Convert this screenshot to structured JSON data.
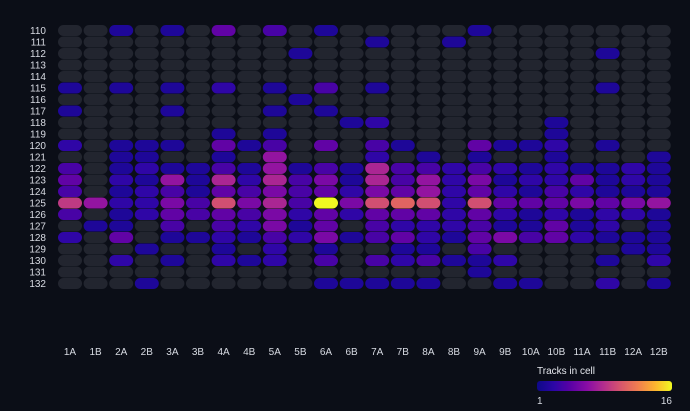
{
  "chart_data": {
    "type": "heatmap",
    "title": "",
    "xlabel": "",
    "ylabel": "",
    "columns": [
      "1A",
      "1B",
      "2A",
      "2B",
      "3A",
      "3B",
      "4A",
      "4B",
      "5A",
      "5B",
      "6A",
      "6B",
      "7A",
      "7B",
      "8A",
      "8B",
      "9A",
      "9B",
      "10A",
      "10B",
      "11A",
      "11B",
      "12A",
      "12B"
    ],
    "rows": [
      "110",
      "111",
      "112",
      "113",
      "114",
      "115",
      "116",
      "117",
      "118",
      "119",
      "120",
      "121",
      "122",
      "123",
      "124",
      "125",
      "126",
      "127",
      "128",
      "129",
      "130",
      "131",
      "132"
    ],
    "values": [
      [
        0,
        0,
        2,
        0,
        2,
        0,
        5,
        0,
        4,
        0,
        2,
        0,
        0,
        0,
        0,
        0,
        2,
        0,
        0,
        0,
        0,
        0,
        0,
        0
      ],
      [
        0,
        0,
        0,
        0,
        0,
        0,
        0,
        0,
        0,
        0,
        0,
        0,
        2,
        0,
        0,
        2,
        0,
        0,
        0,
        0,
        0,
        0,
        0,
        0
      ],
      [
        0,
        0,
        0,
        0,
        0,
        0,
        0,
        0,
        0,
        2,
        0,
        0,
        0,
        0,
        0,
        0,
        0,
        0,
        0,
        0,
        0,
        2,
        0,
        0
      ],
      [
        0,
        0,
        0,
        0,
        0,
        0,
        0,
        0,
        0,
        0,
        0,
        0,
        0,
        0,
        0,
        0,
        0,
        0,
        0,
        0,
        0,
        0,
        0,
        0
      ],
      [
        0,
        0,
        0,
        0,
        0,
        0,
        0,
        0,
        0,
        0,
        0,
        0,
        0,
        0,
        0,
        0,
        0,
        0,
        0,
        0,
        0,
        0,
        0,
        0
      ],
      [
        2,
        0,
        2,
        0,
        2,
        0,
        3,
        0,
        2,
        0,
        4,
        0,
        2,
        0,
        0,
        0,
        0,
        0,
        0,
        0,
        0,
        2,
        0,
        0
      ],
      [
        0,
        0,
        0,
        0,
        0,
        0,
        0,
        0,
        0,
        2,
        0,
        0,
        0,
        0,
        0,
        0,
        0,
        0,
        0,
        0,
        0,
        0,
        0,
        0
      ],
      [
        2,
        0,
        0,
        0,
        2,
        0,
        0,
        0,
        2,
        0,
        2,
        0,
        0,
        0,
        0,
        0,
        0,
        0,
        0,
        0,
        0,
        0,
        0,
        0
      ],
      [
        0,
        0,
        0,
        0,
        0,
        0,
        0,
        0,
        0,
        0,
        0,
        2,
        3,
        0,
        0,
        0,
        0,
        0,
        0,
        2,
        0,
        0,
        0,
        0
      ],
      [
        0,
        0,
        0,
        0,
        0,
        0,
        2,
        0,
        2,
        0,
        0,
        0,
        0,
        0,
        0,
        0,
        0,
        0,
        0,
        2,
        0,
        0,
        0,
        0
      ],
      [
        3,
        0,
        2,
        2,
        2,
        0,
        5,
        2,
        4,
        0,
        5,
        0,
        4,
        2,
        0,
        0,
        5,
        2,
        2,
        3,
        0,
        2,
        0,
        0
      ],
      [
        0,
        0,
        2,
        2,
        0,
        0,
        2,
        0,
        7,
        0,
        0,
        0,
        3,
        0,
        2,
        0,
        2,
        0,
        0,
        2,
        0,
        0,
        0,
        2
      ],
      [
        4,
        0,
        2,
        3,
        2,
        2,
        4,
        2,
        7,
        2,
        4,
        2,
        8,
        4,
        4,
        3,
        4,
        3,
        2,
        3,
        2,
        2,
        3,
        2
      ],
      [
        5,
        0,
        3,
        2,
        7,
        2,
        8,
        3,
        8,
        4,
        6,
        2,
        8,
        4,
        7,
        3,
        6,
        2,
        3,
        3,
        5,
        2,
        3,
        2
      ],
      [
        4,
        0,
        2,
        3,
        4,
        2,
        5,
        4,
        6,
        4,
        5,
        3,
        6,
        5,
        7,
        3,
        5,
        3,
        2,
        4,
        3,
        2,
        2,
        2
      ],
      [
        9,
        7,
        3,
        3,
        6,
        4,
        10,
        6,
        8,
        4,
        16,
        6,
        10,
        11,
        10,
        3,
        10,
        5,
        5,
        5,
        6,
        5,
        6,
        7
      ],
      [
        4,
        0,
        2,
        3,
        5,
        4,
        5,
        4,
        6,
        3,
        5,
        3,
        5,
        5,
        5,
        3,
        5,
        3,
        2,
        3,
        2,
        3,
        3,
        2
      ],
      [
        0,
        2,
        2,
        0,
        4,
        0,
        4,
        3,
        6,
        2,
        5,
        0,
        4,
        3,
        3,
        3,
        4,
        2,
        2,
        5,
        2,
        3,
        0,
        2
      ],
      [
        3,
        0,
        5,
        0,
        2,
        2,
        3,
        2,
        4,
        3,
        6,
        2,
        4,
        5,
        3,
        2,
        5,
        6,
        4,
        5,
        3,
        2,
        2,
        2
      ],
      [
        0,
        0,
        0,
        2,
        0,
        0,
        2,
        0,
        3,
        0,
        2,
        0,
        0,
        2,
        2,
        0,
        4,
        0,
        0,
        0,
        0,
        0,
        2,
        2
      ],
      [
        0,
        0,
        3,
        0,
        2,
        0,
        3,
        2,
        3,
        0,
        4,
        0,
        4,
        3,
        4,
        2,
        2,
        3,
        0,
        0,
        0,
        2,
        0,
        3
      ],
      [
        0,
        0,
        0,
        0,
        0,
        0,
        0,
        0,
        0,
        0,
        0,
        0,
        0,
        0,
        0,
        0,
        2,
        0,
        0,
        0,
        0,
        0,
        0,
        0
      ],
      [
        0,
        0,
        0,
        2,
        0,
        0,
        0,
        0,
        0,
        0,
        2,
        2,
        2,
        2,
        2,
        0,
        0,
        2,
        2,
        0,
        0,
        3,
        0,
        2
      ]
    ],
    "color_scale": {
      "min": 1,
      "max": 16,
      "empty_color": "#22252f",
      "stops": [
        "#0d0887",
        "#2c06a6",
        "#5b01a5",
        "#8a0da5",
        "#b52f8c",
        "#d8576b",
        "#f07f4f",
        "#fdb42f",
        "#f0f921"
      ]
    },
    "legend": {
      "title": "Tracks in cell",
      "min_label": "1",
      "max_label": "16",
      "placement": "bottom-right"
    }
  }
}
